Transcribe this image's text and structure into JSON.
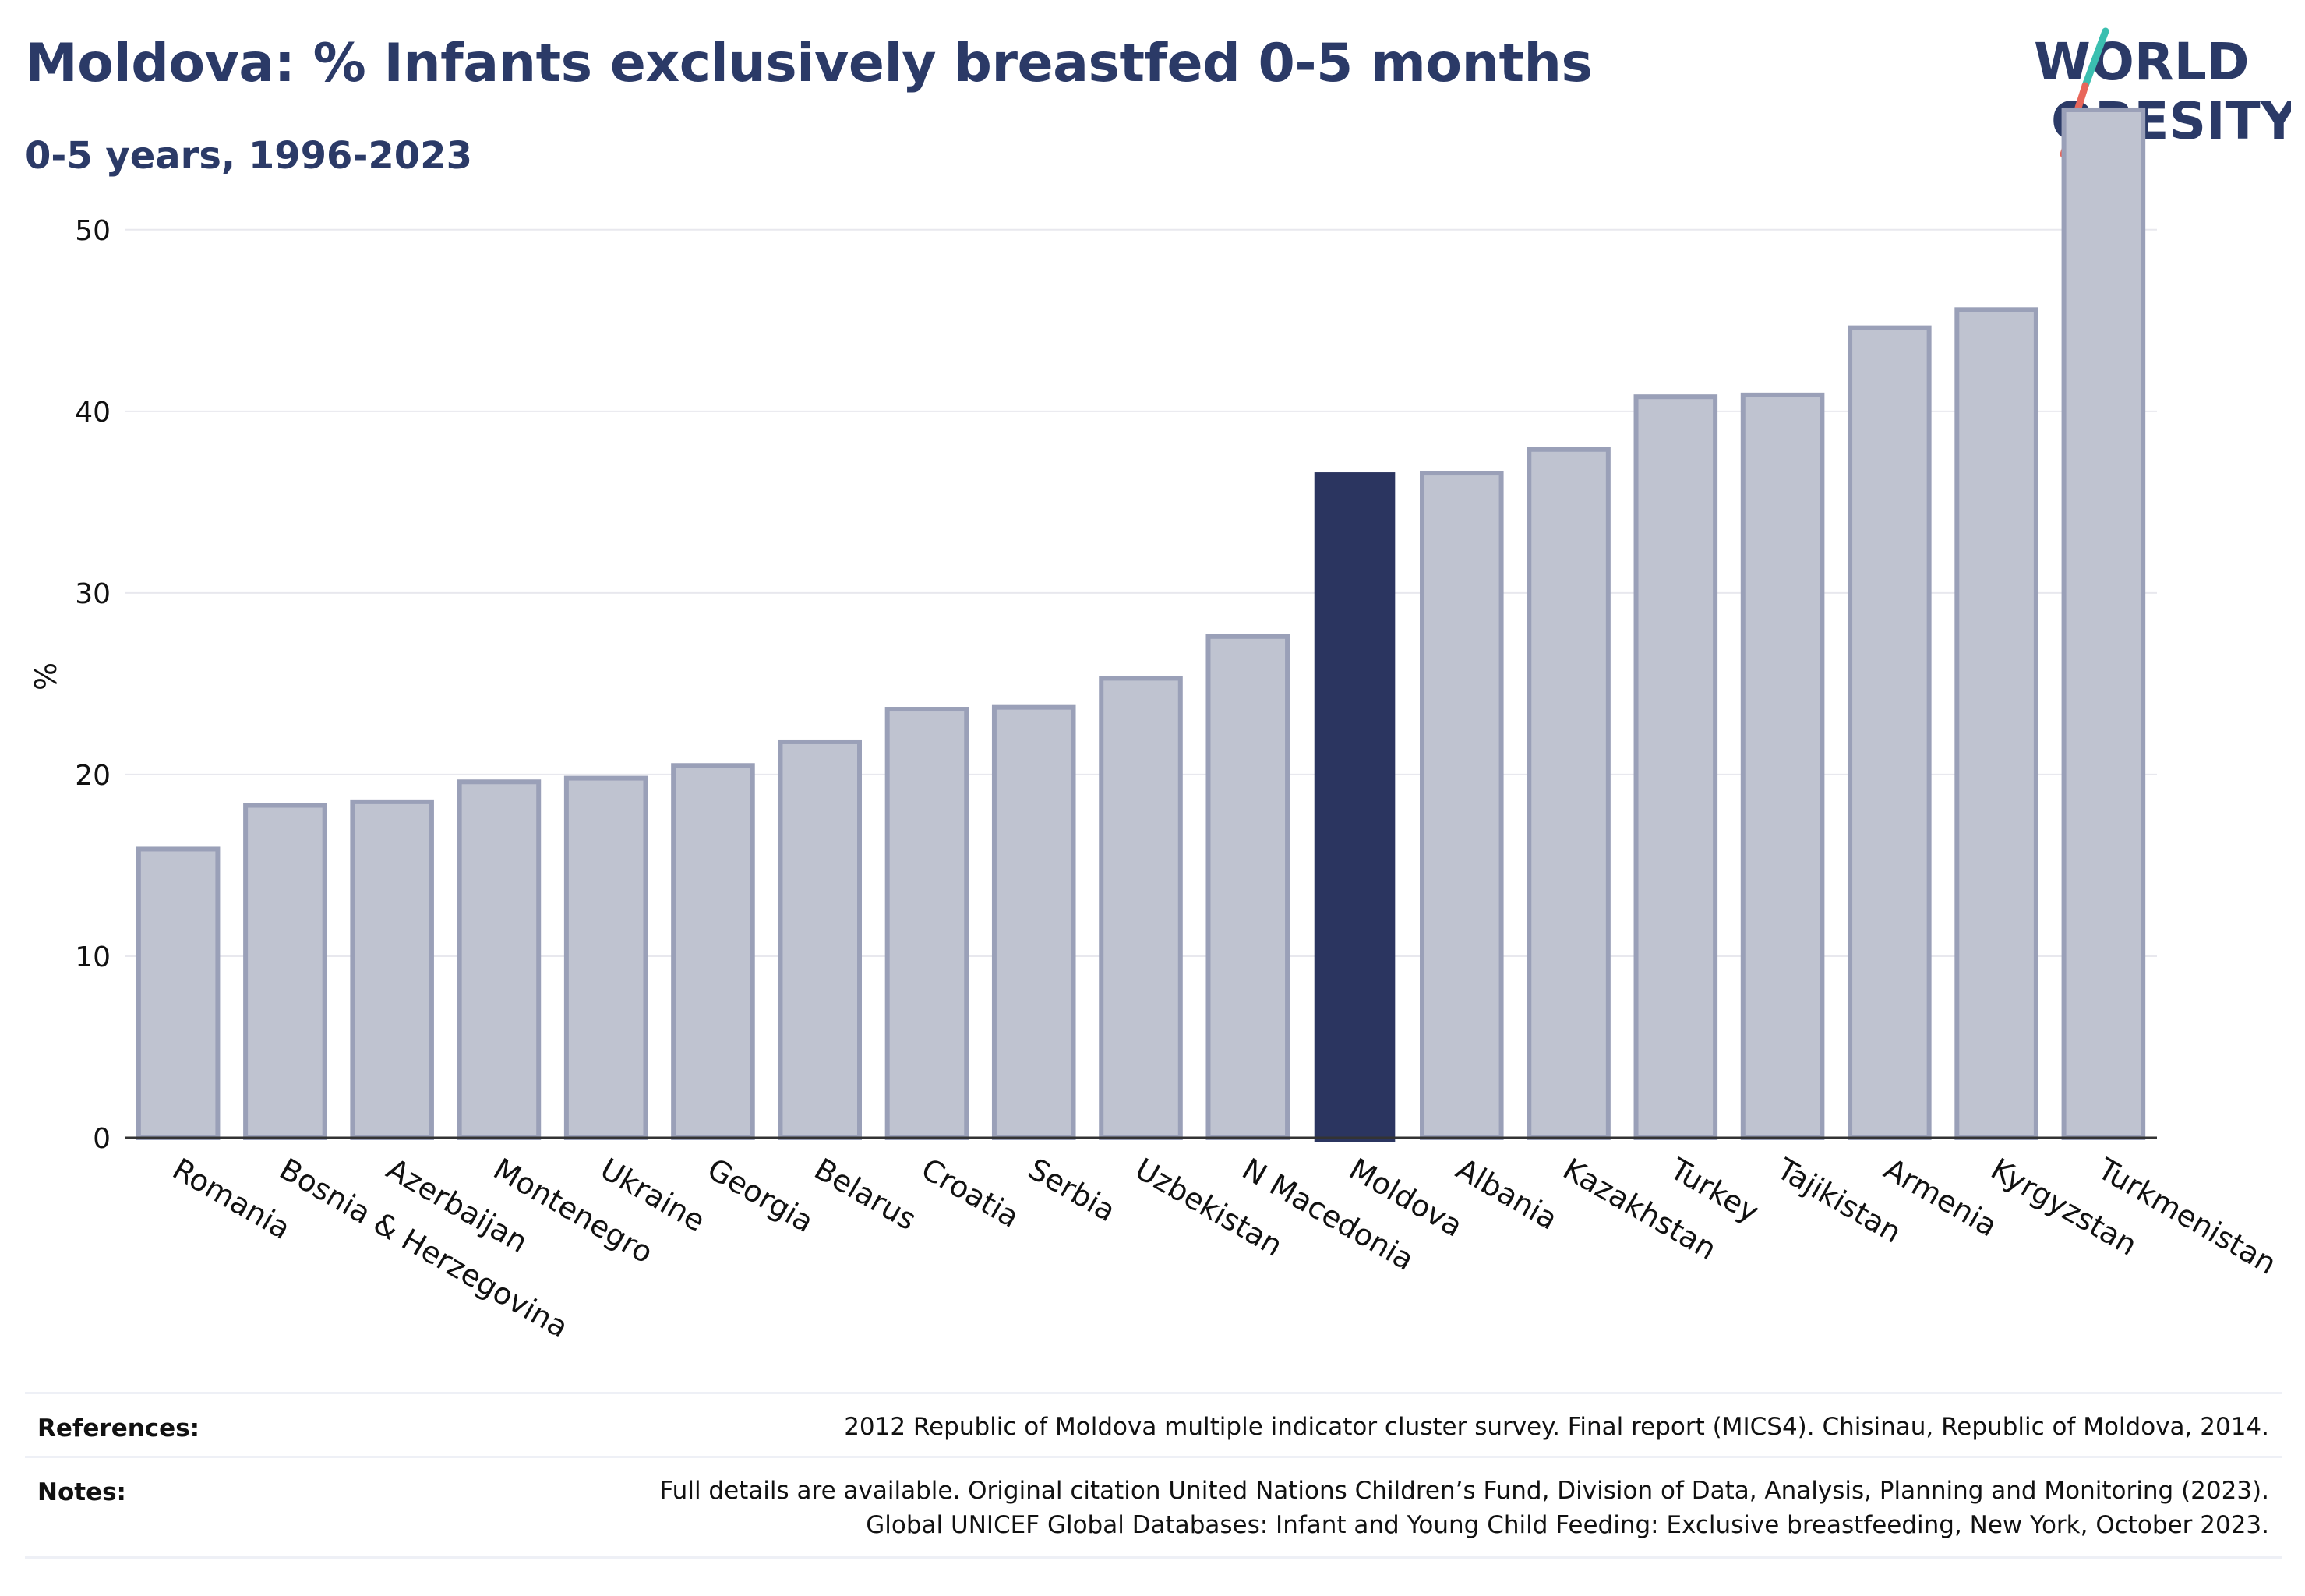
{
  "header": {
    "title": "Moldova: % Infants exclusively breastfed 0-5 months",
    "subtitle": "0-5 years, 1996-2023"
  },
  "logo": {
    "line1": "WORLD",
    "line2": "OBESITY",
    "icon": "world-obesity-slash-logo",
    "slash_colors": [
      "#3bbfb0",
      "#e8665a"
    ],
    "text_color": "#2b3a67"
  },
  "colors": {
    "highlight": "#2b3560",
    "bar_fill": "#bfc3d0",
    "bar_stroke": "#9aa0b8",
    "grid": "#e8e8ee"
  },
  "chart_data": {
    "type": "bar",
    "categories": [
      "Romania",
      "Bosnia & Herzegovina",
      "Azerbaijan",
      "Montenegro",
      "Ukraine",
      "Georgia",
      "Belarus",
      "Croatia",
      "Serbia",
      "Uzbekistan",
      "N Macedonia",
      "Moldova",
      "Albania",
      "Kazakhstan",
      "Turkey",
      "Tajikistan",
      "Armenia",
      "Kyrgyzstan",
      "Turkmenistan"
    ],
    "values": [
      15.9,
      18.3,
      18.5,
      19.6,
      19.8,
      20.5,
      21.8,
      23.6,
      23.7,
      25.3,
      27.6,
      36.6,
      36.6,
      37.9,
      40.8,
      40.9,
      44.6,
      45.6,
      56.6
    ],
    "highlight": "Moldova",
    "xlabel": "",
    "ylabel": "%",
    "ylim": [
      0,
      57.5
    ],
    "yticks": [
      0,
      10,
      20,
      30,
      40,
      50
    ],
    "grid": true
  },
  "footer": {
    "references_label": "References:",
    "references_text": "2012 Republic of Moldova multiple indicator cluster survey. Final report (MICS4). Chisinau, Republic of Moldova, 2014.",
    "notes_label": "Notes:",
    "notes_line1": "Full details are available. Original citation United Nations Children’s Fund, Division of Data, Analysis, Planning and Monitoring (2023).",
    "notes_line2": "Global UNICEF Global Databases: Infant and Young Child Feeding: Exclusive breastfeeding, New York, October 2023."
  }
}
